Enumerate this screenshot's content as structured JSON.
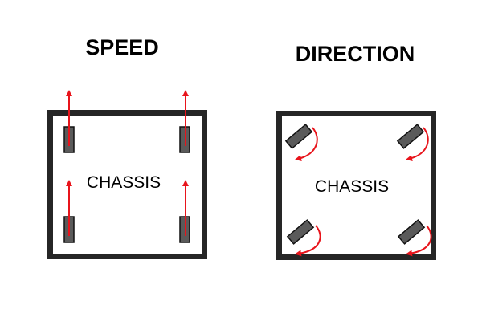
{
  "speed": {
    "title": "SPEED",
    "chassis_label": "CHASSIS"
  },
  "direction": {
    "title": "DIRECTION",
    "chassis_label": "CHASSIS"
  },
  "colors": {
    "frame": "#262626",
    "wheel_fill": "#5a5a5a",
    "wheel_stroke": "#111111",
    "arrow": "#e8141b",
    "background": "#ffffff"
  }
}
